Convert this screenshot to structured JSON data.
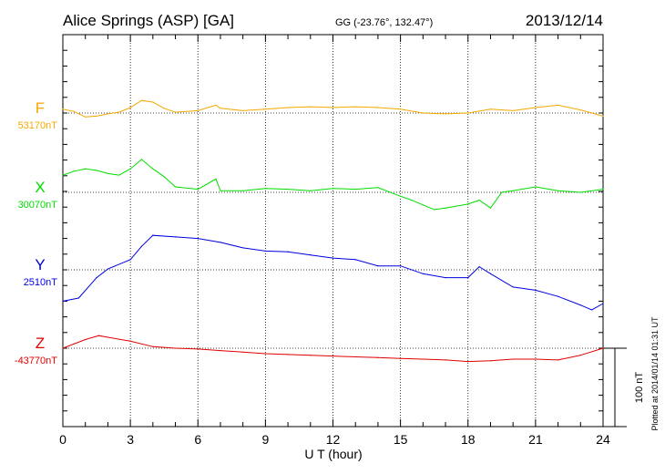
{
  "chart_data": {
    "type": "line",
    "title": "Alice Springs (ASP)  [GA]",
    "subtitle": "GG (-23.76°, 132.47°)",
    "date": "2013/12/14",
    "xlabel": "U T (hour)",
    "xlim": [
      0,
      24
    ],
    "xticks": [
      "0",
      "3",
      "6",
      "9",
      "12",
      "15",
      "18",
      "21",
      "24"
    ],
    "scale_label": "100 nT",
    "scale_nT": 100,
    "footer": "Plotted at 2014/01/14 01:31  UT",
    "grid": true,
    "series": [
      {
        "name": "F",
        "baseline_label": "53170nT",
        "color": "#f5a800",
        "x": [
          0,
          0.5,
          1,
          1.5,
          2,
          2.5,
          3,
          3.5,
          4,
          4.5,
          5,
          6,
          6.8,
          7,
          8,
          9,
          10,
          11,
          12,
          13,
          14,
          15,
          16,
          17,
          18,
          19,
          20,
          21,
          22,
          23,
          24
        ],
        "y": [
          5,
          2,
          -5,
          -4,
          -1,
          1,
          7,
          16,
          14,
          6,
          1,
          3,
          10,
          6,
          3,
          5,
          7,
          8,
          7,
          8,
          7,
          5,
          0,
          -1,
          0,
          5,
          3,
          7,
          10,
          4,
          -4
        ]
      },
      {
        "name": "X",
        "baseline_label": "30070nT",
        "color": "#00dd00",
        "x": [
          0,
          0.5,
          1,
          1.5,
          2,
          2.5,
          3,
          3.5,
          4,
          4.5,
          5,
          6,
          6.8,
          7,
          8,
          9,
          10,
          11,
          12,
          13,
          14,
          15,
          15.5,
          16,
          16.5,
          17,
          18,
          18.5,
          19,
          19.5,
          20,
          21,
          22,
          23,
          24
        ],
        "y": [
          22,
          27,
          30,
          28,
          24,
          22,
          30,
          42,
          30,
          20,
          7,
          4,
          17,
          2,
          2,
          5,
          4,
          2,
          5,
          4,
          6,
          -5,
          -10,
          -16,
          -22,
          -20,
          -15,
          -10,
          -20,
          0,
          2,
          7,
          2,
          0,
          4
        ]
      },
      {
        "name": "Y",
        "baseline_label": "2510nT",
        "color": "#0000e0",
        "x": [
          0,
          0.7,
          1.5,
          2,
          3,
          3.5,
          4,
          5,
          6,
          7,
          8,
          9,
          10,
          11,
          12,
          13,
          14,
          15,
          16,
          17,
          18,
          18.5,
          19,
          20,
          21,
          22,
          23,
          23.5,
          24
        ],
        "y": [
          -40,
          -36,
          -10,
          1,
          13,
          30,
          44,
          42,
          40,
          35,
          28,
          24,
          23,
          19,
          15,
          13,
          5,
          5,
          -5,
          -10,
          -10,
          4,
          -5,
          -22,
          -26,
          -34,
          -45,
          -51,
          -43
        ]
      },
      {
        "name": "Z",
        "baseline_label": "-43770nT",
        "color": "#e00000",
        "x": [
          0,
          1,
          1.6,
          2,
          3,
          4,
          5,
          6,
          7,
          8,
          9,
          10,
          11,
          12,
          13,
          14,
          15,
          16,
          17,
          18,
          19,
          20,
          21,
          22,
          23,
          24
        ],
        "y": [
          0,
          11,
          16,
          14,
          9,
          2,
          0,
          -1,
          -3,
          -5,
          -7,
          -8,
          -9,
          -10,
          -11,
          -12,
          -13,
          -14,
          -15,
          -17,
          -16,
          -14,
          -14,
          -15,
          -9,
          0
        ]
      }
    ]
  }
}
